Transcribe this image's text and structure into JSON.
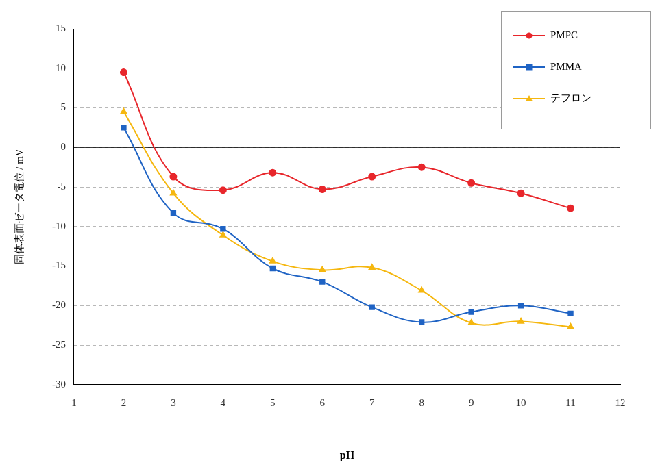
{
  "chart_data": {
    "type": "line",
    "x_label": "pH",
    "y_label": "固体表面ゼータ電位 / mV",
    "x": [
      2,
      3,
      4,
      5,
      6,
      7,
      8,
      9,
      10,
      11
    ],
    "series": [
      {
        "name": "PMPC",
        "color": "#e8262b",
        "marker": "circle",
        "values": [
          9.5,
          -3.7,
          -5.4,
          -3.2,
          -5.3,
          -3.7,
          -2.5,
          -4.5,
          -5.8,
          -7.7
        ]
      },
      {
        "name": "PMMA",
        "color": "#1f63c4",
        "marker": "square",
        "values": [
          2.5,
          -8.3,
          -10.3,
          -15.3,
          -17.0,
          -20.2,
          -22.1,
          -20.8,
          -20.0,
          -21.0
        ]
      },
      {
        "name": "テフロン",
        "color": "#f5b70f",
        "marker": "triangle",
        "values": [
          4.5,
          -5.8,
          -11.1,
          -14.4,
          -15.5,
          -15.2,
          -18.1,
          -22.2,
          -22.0,
          -22.7
        ]
      }
    ],
    "xlim": [
      1,
      12
    ],
    "xticks": [
      1,
      2,
      3,
      4,
      5,
      6,
      7,
      8,
      9,
      10,
      11,
      12
    ],
    "ylim": [
      -30,
      15
    ],
    "yticks": [
      -30,
      -25,
      -20,
      -15,
      -10,
      -5,
      0,
      5,
      10,
      15
    ],
    "grid": true,
    "legend": "upper right"
  }
}
